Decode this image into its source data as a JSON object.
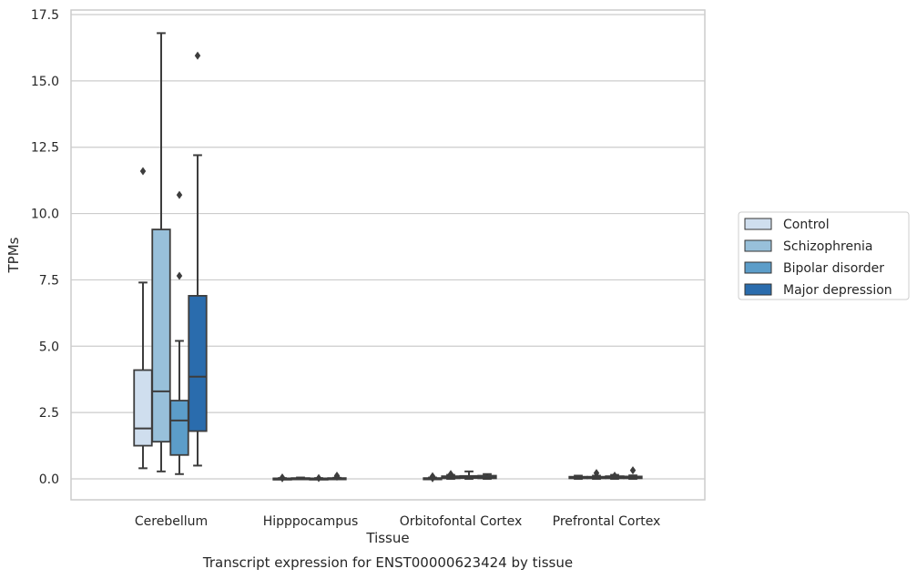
{
  "chart_data": {
    "type": "box",
    "title": "Transcript expression for ENST00000623424 by tissue",
    "xlabel": "Tissue",
    "ylabel": "TPMs",
    "ylim": [
      -0.8,
      17.6
    ],
    "yticks": [
      "0.0",
      "2.5",
      "5.0",
      "7.5",
      "10.0",
      "12.5",
      "15.0",
      "17.5"
    ],
    "ytick_values": [
      0,
      2.5,
      5,
      7.5,
      10,
      12.5,
      15,
      17.5
    ],
    "grid": "horizontal",
    "legend_position": "right",
    "categories": [
      "Cerebellum",
      "Hipppocampus",
      "Orbitofontal Cortex",
      "Prefrontal Cortex"
    ],
    "series": [
      {
        "name": "Control",
        "color": "#cfdeee",
        "boxes": [
          {
            "q1": 1.25,
            "median": 1.9,
            "q3": 4.1,
            "whisker_low": 0.4,
            "whisker_high": 7.4,
            "outliers": [
              11.6
            ]
          },
          {
            "q1": 0.0,
            "median": 0.0,
            "q3": 0.02,
            "whisker_low": 0.0,
            "whisker_high": 0.03,
            "outliers": [
              0.05,
              0.02
            ]
          },
          {
            "q1": 0.0,
            "median": 0.01,
            "q3": 0.03,
            "whisker_low": 0.0,
            "whisker_high": 0.05,
            "outliers": [
              0.1,
              0.02
            ]
          },
          {
            "q1": 0.02,
            "median": 0.05,
            "q3": 0.08,
            "whisker_low": 0.0,
            "whisker_high": 0.12,
            "outliers": []
          }
        ]
      },
      {
        "name": "Schizophrenia",
        "color": "#98c0da",
        "boxes": [
          {
            "q1": 1.4,
            "median": 3.3,
            "q3": 9.4,
            "whisker_low": 0.28,
            "whisker_high": 16.8,
            "outliers": []
          },
          {
            "q1": 0.0,
            "median": 0.01,
            "q3": 0.03,
            "whisker_low": 0.0,
            "whisker_high": 0.05,
            "outliers": []
          },
          {
            "q1": 0.02,
            "median": 0.05,
            "q3": 0.1,
            "whisker_low": 0.0,
            "whisker_high": 0.15,
            "outliers": [
              0.18
            ]
          },
          {
            "q1": 0.02,
            "median": 0.05,
            "q3": 0.08,
            "whisker_low": 0.0,
            "whisker_high": 0.12,
            "outliers": [
              0.22
            ]
          }
        ]
      },
      {
        "name": "Bipolar disorder",
        "color": "#5c9dc9",
        "boxes": [
          {
            "q1": 0.9,
            "median": 2.2,
            "q3": 2.95,
            "whisker_low": 0.18,
            "whisker_high": 5.2,
            "outliers": [
              7.65,
              10.7
            ]
          },
          {
            "q1": 0.0,
            "median": 0.01,
            "q3": 0.02,
            "whisker_low": 0.0,
            "whisker_high": 0.03,
            "outliers": [
              0.03
            ]
          },
          {
            "q1": 0.03,
            "median": 0.07,
            "q3": 0.11,
            "whisker_low": 0.0,
            "whisker_high": 0.28,
            "outliers": []
          },
          {
            "q1": 0.02,
            "median": 0.06,
            "q3": 0.1,
            "whisker_low": 0.0,
            "whisker_high": 0.15,
            "outliers": [
              0.12
            ]
          }
        ]
      },
      {
        "name": "Major depression",
        "color": "#2a6cad",
        "boxes": [
          {
            "q1": 1.8,
            "median": 3.85,
            "q3": 6.9,
            "whisker_low": 0.5,
            "whisker_high": 12.2,
            "outliers": [
              15.95
            ]
          },
          {
            "q1": 0.0,
            "median": 0.01,
            "q3": 0.03,
            "whisker_low": 0.0,
            "whisker_high": 0.04,
            "outliers": [
              0.08,
              0.12
            ]
          },
          {
            "q1": 0.02,
            "median": 0.06,
            "q3": 0.12,
            "whisker_low": 0.0,
            "whisker_high": 0.18,
            "outliers": []
          },
          {
            "q1": 0.02,
            "median": 0.05,
            "q3": 0.09,
            "whisker_low": 0.0,
            "whisker_high": 0.13,
            "outliers": [
              0.32
            ]
          }
        ]
      }
    ]
  }
}
